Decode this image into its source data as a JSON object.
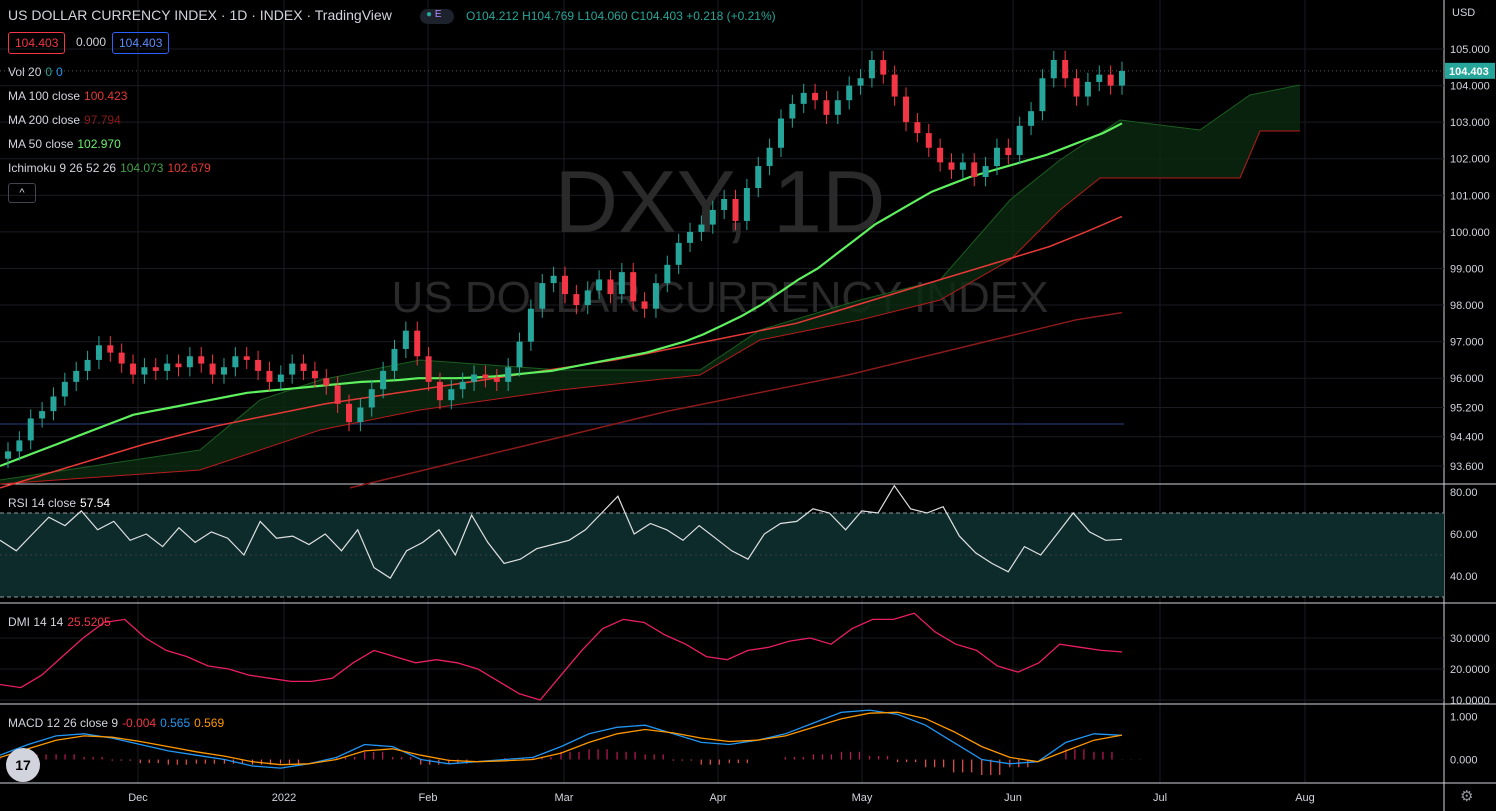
{
  "header": {
    "title": "US DOLLAR CURRENCY INDEX · 1D · INDEX · TradingView",
    "badge_e": "E",
    "ohlc": {
      "o": "O104.212",
      "h": "H104.769",
      "l": "L104.060",
      "c": "C104.403",
      "chg": "+0.218 (+0.21%)"
    },
    "price_box_left": "104.403",
    "mid_value": "0.000",
    "price_box_right": "104.403",
    "currency": "USD"
  },
  "indicators": {
    "vol": {
      "label": "Vol 20",
      "v1": "0",
      "v2": "0"
    },
    "ma100": {
      "label": "MA 100 close",
      "value": "100.423"
    },
    "ma200": {
      "label": "MA 200 close",
      "value": "97.794"
    },
    "ma50": {
      "label": "MA 50 close",
      "value": "102.970"
    },
    "ichimoku": {
      "label": "Ichimoku 9 26 52 26",
      "v1": "104.073",
      "v2": "102.679"
    },
    "rsi": {
      "label": "RSI 14 close",
      "value": "57.54"
    },
    "dmi": {
      "label": "DMI 14 14",
      "value": "25.5205"
    },
    "macd": {
      "label": "MACD 12 26 close 9",
      "v1": "-0.004",
      "v2": "0.565",
      "v3": "0.569"
    }
  },
  "watermark": {
    "symbol": "DXY, 1D",
    "name": "US DOLLAR CURRENCY INDEX"
  },
  "logo_text": "17",
  "chart_data": {
    "type": "line",
    "x_ticks": [
      "Dec",
      "2022",
      "Feb",
      "Mar",
      "Apr",
      "May",
      "Jun",
      "Jul",
      "Aug"
    ],
    "price_axis": [
      "105.000",
      "104.000",
      "103.000",
      "102.000",
      "101.000",
      "100.000",
      "99.000",
      "98.000",
      "97.000",
      "96.000",
      "95.200",
      "94.400",
      "93.600"
    ],
    "last_price": "104.403",
    "rsi_axis": [
      "80.00",
      "60.00",
      "40.00"
    ],
    "dmi_axis": [
      "30.0000",
      "20.0000",
      "10.0000"
    ],
    "macd_axis": [
      "1.000",
      "0.000"
    ],
    "price_close": [
      94.0,
      94.3,
      94.9,
      95.1,
      95.5,
      95.9,
      96.2,
      96.5,
      96.9,
      96.7,
      96.4,
      96.1,
      96.3,
      96.2,
      96.4,
      96.3,
      96.6,
      96.4,
      96.1,
      96.3,
      96.6,
      96.5,
      96.2,
      95.9,
      96.1,
      96.4,
      96.2,
      96.0,
      95.8,
      95.3,
      94.8,
      95.2,
      95.7,
      96.2,
      96.8,
      97.3,
      96.6,
      95.9,
      95.4,
      95.7,
      95.9,
      96.1,
      96.0,
      95.9,
      96.3,
      97.0,
      97.9,
      98.6,
      98.8,
      98.3,
      98.0,
      98.4,
      98.7,
      98.3,
      98.9,
      98.1,
      97.9,
      98.6,
      99.1,
      99.7,
      100.0,
      100.2,
      100.6,
      100.9,
      100.3,
      101.2,
      101.8,
      102.3,
      103.1,
      103.5,
      103.8,
      103.6,
      103.2,
      103.6,
      104.0,
      104.2,
      104.7,
      104.3,
      103.7,
      103.0,
      102.7,
      102.3,
      101.9,
      101.7,
      101.9,
      101.5,
      101.8,
      102.3,
      102.1,
      102.9,
      103.3,
      104.2,
      104.7,
      104.2,
      103.7,
      104.1,
      104.3,
      104.0,
      104.4
    ],
    "ma50": [
      93.6,
      93.8,
      94.0,
      94.2,
      94.4,
      94.6,
      94.8,
      95.0,
      95.1,
      95.2,
      95.3,
      95.4,
      95.5,
      95.6,
      95.65,
      95.7,
      95.75,
      95.8,
      95.85,
      95.9,
      95.92,
      95.95,
      96.0,
      96.0,
      96.0,
      96.02,
      96.05,
      96.1,
      96.15,
      96.2,
      96.3,
      96.4,
      96.5,
      96.6,
      96.7,
      96.85,
      97.0,
      97.2,
      97.45,
      97.7,
      98.0,
      98.35,
      98.7,
      99.0,
      99.4,
      99.8,
      100.2,
      100.5,
      100.8,
      101.1,
      101.3,
      101.5,
      101.65,
      101.8,
      101.95,
      102.1,
      102.3,
      102.5,
      102.7,
      102.97
    ],
    "ma100": [
      93.0,
      93.3,
      93.6,
      93.9,
      94.2,
      94.45,
      94.7,
      94.9,
      95.1,
      95.3,
      95.45,
      95.6,
      95.75,
      95.9,
      96.05,
      96.2,
      96.35,
      96.5,
      96.7,
      96.9,
      97.1,
      97.3,
      97.5,
      97.8,
      98.1,
      98.4,
      98.7,
      99.0,
      99.3,
      99.6,
      100.0,
      100.423
    ],
    "ma200": [
      93.0,
      93.3,
      93.6,
      93.9,
      94.2,
      94.5,
      94.8,
      95.1,
      95.35,
      95.6,
      95.85,
      96.1,
      96.4,
      96.7,
      97.0,
      97.3,
      97.6,
      97.794
    ],
    "rsi": [
      57,
      52,
      60,
      68,
      64,
      71,
      62,
      66,
      57,
      60,
      54,
      63,
      56,
      61,
      58,
      50,
      66,
      58,
      59,
      55,
      60,
      52,
      62,
      44,
      39,
      52,
      56,
      62,
      50,
      69,
      56,
      46,
      48,
      53,
      55,
      57,
      62,
      70,
      78,
      60,
      65,
      62,
      57,
      64,
      58,
      52,
      48,
      60,
      65,
      66,
      72,
      70,
      62,
      71,
      70,
      83,
      72,
      70,
      73,
      59,
      51,
      46,
      42,
      54,
      50,
      60,
      70,
      61,
      57,
      57.5
    ],
    "dmi": [
      15,
      14,
      18,
      24,
      30,
      35,
      36,
      30,
      26,
      24,
      21,
      20,
      18,
      17,
      16,
      16,
      17,
      22,
      26,
      24,
      22,
      23,
      22,
      20,
      16,
      12,
      10,
      18,
      26,
      33,
      36,
      35,
      31,
      28,
      24,
      23,
      26,
      27,
      29,
      30,
      28,
      33,
      36,
      36,
      38,
      32,
      28,
      26,
      21,
      19,
      22,
      28,
      27,
      26,
      25.52
    ],
    "macd": [
      0.1,
      0.35,
      0.55,
      0.6,
      0.5,
      0.35,
      0.2,
      0.1,
      0.0,
      -0.15,
      -0.2,
      -0.1,
      0.05,
      0.35,
      0.3,
      0.0,
      -0.1,
      -0.05,
      0.0,
      0.05,
      0.3,
      0.6,
      0.75,
      0.8,
      0.6,
      0.4,
      0.35,
      0.45,
      0.6,
      0.85,
      1.1,
      1.15,
      1.05,
      0.8,
      0.4,
      0.0,
      -0.1,
      -0.05,
      0.4,
      0.6,
      0.565
    ],
    "signal": [
      0.05,
      0.25,
      0.45,
      0.55,
      0.52,
      0.42,
      0.3,
      0.18,
      0.08,
      -0.05,
      -0.12,
      -0.1,
      0.0,
      0.2,
      0.25,
      0.1,
      -0.02,
      -0.05,
      -0.03,
      0.0,
      0.15,
      0.4,
      0.6,
      0.7,
      0.62,
      0.5,
      0.42,
      0.45,
      0.55,
      0.75,
      0.95,
      1.08,
      1.1,
      0.95,
      0.65,
      0.3,
      0.05,
      -0.05,
      0.2,
      0.45,
      0.569
    ]
  }
}
